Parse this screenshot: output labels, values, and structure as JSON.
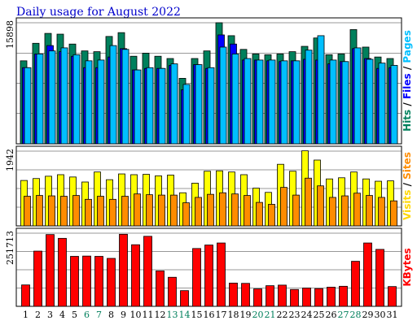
{
  "chart_data": {
    "type": "bar",
    "title": "Daily usage for August 2022",
    "days": [
      "1",
      "2",
      "3",
      "4",
      "5",
      "6",
      "7",
      "8",
      "9",
      "10",
      "11",
      "12",
      "13",
      "14",
      "15",
      "16",
      "17",
      "18",
      "19",
      "20",
      "21",
      "22",
      "23",
      "24",
      "25",
      "26",
      "27",
      "28",
      "29",
      "30",
      "31"
    ],
    "weekend_days": [
      "6",
      "7",
      "13",
      "14",
      "20",
      "21",
      "27",
      "28"
    ],
    "panels": [
      {
        "name": "hits-files-pages",
        "ymax_label": "15898",
        "ymax": 15898,
        "legend": [
          {
            "text": "Hits",
            "color": "#00805c"
          },
          {
            "text": "/",
            "color": "#000000"
          },
          {
            "text": "Files",
            "color": "#0000ff"
          },
          {
            "text": "/",
            "color": "#000000"
          },
          {
            "text": "Pages",
            "color": "#00bfff"
          }
        ],
        "series": [
          {
            "name": "Hits",
            "color": "#00805c",
            "values": [
              10900,
              13200,
              14500,
              14400,
              13100,
              12200,
              12100,
              14100,
              14600,
              11500,
              11900,
              11500,
              11200,
              8600,
              11200,
              12200,
              15898,
              14200,
              12400,
              11800,
              11700,
              11800,
              12100,
              12800,
              13900,
              11700,
              11800,
              15000,
              12700,
              11400,
              11200
            ]
          },
          {
            "name": "Files",
            "color": "#0000ff",
            "values": [
              10000,
              11800,
              12900,
              12100,
              11500,
              10000,
              10000,
              11400,
              12500,
              9700,
              9900,
              9900,
              10300,
              7100,
              10400,
              9900,
              14300,
              13100,
              11000,
              11000,
              10900,
              10800,
              10900,
              11100,
              11000,
              10500,
              10800,
              12500,
              11200,
              9900,
              10000
            ]
          },
          {
            "name": "Pages",
            "color": "#00bfff",
            "values": [
              10000,
              11800,
              12200,
              12600,
              11700,
              10900,
              11000,
              12900,
              12400,
              9700,
              10000,
              9900,
              10500,
              7800,
              10400,
              10000,
              12700,
              11800,
              11200,
              11000,
              11000,
              10900,
              10900,
              12300,
              14200,
              11000,
              10800,
              12600,
              11100,
              10600,
              10300
            ]
          }
        ]
      },
      {
        "name": "visits-sites",
        "ymax_label": "1942",
        "ymax": 1942,
        "legend": [
          {
            "text": "Visits",
            "color": "#ffd700"
          },
          {
            "text": "/",
            "color": "#000000"
          },
          {
            "text": "Sites",
            "color": "#ff8c00"
          }
        ],
        "series": [
          {
            "name": "Visits",
            "color": "#ffff00",
            "values": [
              1180,
              1230,
              1290,
              1330,
              1270,
              1140,
              1400,
              1200,
              1350,
              1330,
              1340,
              1300,
              1320,
              860,
              1110,
              1420,
              1430,
              1400,
              1330,
              980,
              870,
              1600,
              1420,
              1950,
              1710,
              1220,
              1250,
              1400,
              1220,
              1160,
              1170
            ]
          },
          {
            "name": "Sites",
            "color": "#ff8c00",
            "values": [
              770,
              790,
              780,
              770,
              790,
              690,
              770,
              690,
              770,
              830,
              810,
              800,
              800,
              600,
              740,
              820,
              860,
              830,
              790,
              610,
              560,
              1000,
              800,
              1240,
              1040,
              740,
              780,
              850,
              790,
              740,
              650
            ]
          }
        ]
      },
      {
        "name": "kbytes",
        "ymax_label": "251713",
        "ymax": 251713,
        "legend": [
          {
            "text": "KBytes",
            "color": "#ff0000"
          }
        ],
        "series": [
          {
            "name": "KBytes",
            "color": "#ff0000",
            "values": [
              73600,
              190000,
              247000,
              234000,
              172000,
              173000,
              172000,
              165000,
              248000,
              212000,
              241000,
              122000,
              100000,
              54000,
              199000,
              211000,
              218000,
              80000,
              79000,
              60000,
              71000,
              73000,
              58000,
              63000,
              61000,
              66000,
              69000,
              155000,
              218000,
              196000,
              68000
            ]
          }
        ]
      }
    ]
  }
}
